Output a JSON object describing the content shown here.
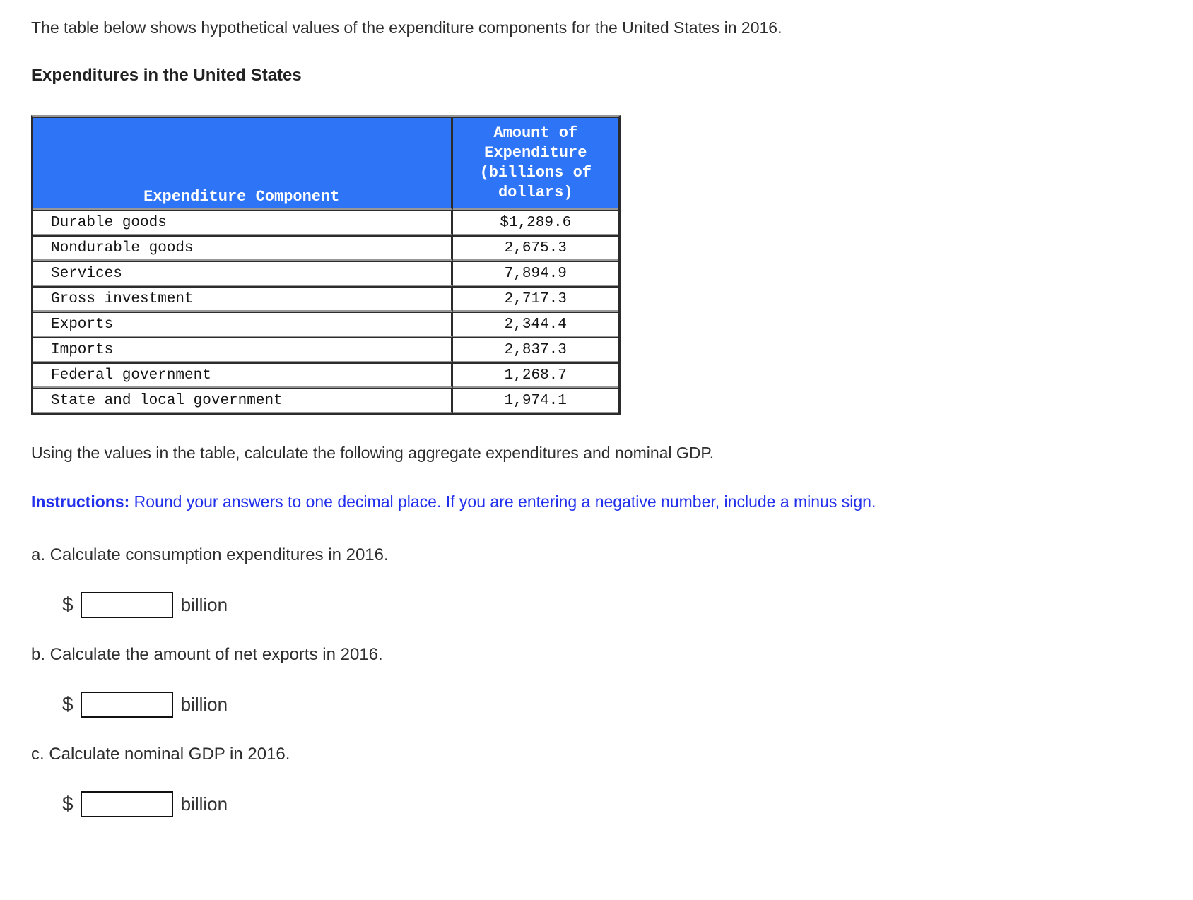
{
  "page": {
    "intro": "The table below shows hypothetical values of the expenditure components for the United States in 2016.",
    "heading": "Expenditures in the United States",
    "after_table": "Using the values in the table, calculate the following aggregate expenditures and nominal GDP.",
    "instructions_label": "Instructions:",
    "instructions_text": " Round your answers to one decimal place. If you are entering a negative number, include a minus sign."
  },
  "table": {
    "component_header": "Expenditure Component",
    "amount_header_lines": [
      "Amount of",
      "Expenditure",
      "(billions of",
      "dollars)"
    ],
    "rows": [
      {
        "component": "Durable goods",
        "amount": "$1,289.6"
      },
      {
        "component": "Nondurable goods",
        "amount": "2,675.3"
      },
      {
        "component": "Services",
        "amount": "7,894.9"
      },
      {
        "component": "Gross investment",
        "amount": "2,717.3"
      },
      {
        "component": "Exports",
        "amount": "2,344.4"
      },
      {
        "component": "Imports",
        "amount": "2,837.3"
      },
      {
        "component": "Federal government",
        "amount": "1,268.7"
      },
      {
        "component": "State and local government",
        "amount": "1,974.1"
      }
    ]
  },
  "questions": [
    {
      "label": "a. Calculate consumption expenditures in 2016.",
      "prefix": "$",
      "value": "",
      "suffix": "billion"
    },
    {
      "label": "b. Calculate the amount of net exports in 2016.",
      "prefix": "$",
      "value": "",
      "suffix": "billion"
    },
    {
      "label": "c. Calculate nominal GDP in 2016.",
      "prefix": "$",
      "value": "",
      "suffix": "billion"
    }
  ],
  "colors": {
    "table_header_bg": "#2e74f6",
    "table_header_text": "#ffffff",
    "instructions_blue": "#2230ec",
    "body_text": "#2e2e2e",
    "table_border_dark": "#2b2b2b",
    "table_border_light": "#979797"
  }
}
